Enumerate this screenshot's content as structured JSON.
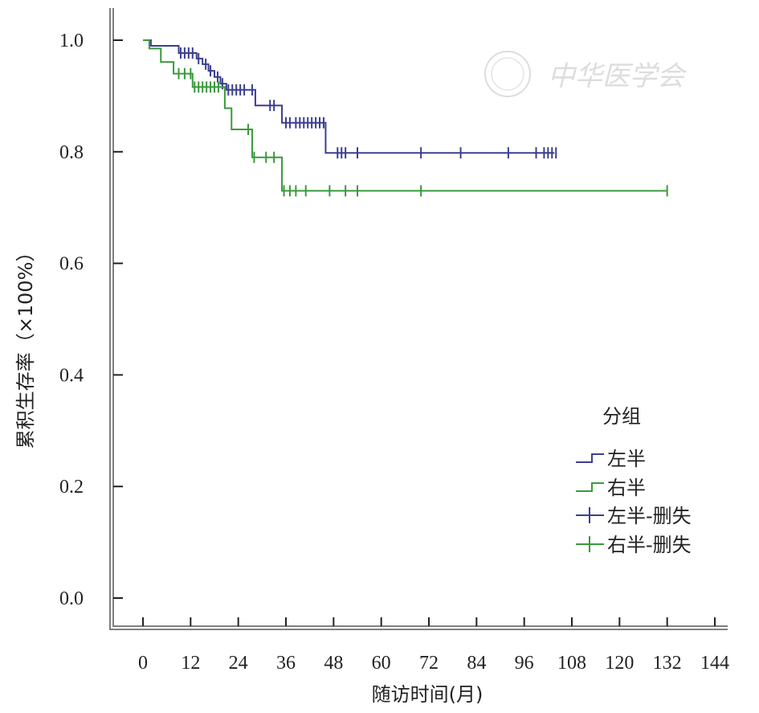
{
  "chart_data": {
    "type": "line",
    "subtype": "kaplan-meier",
    "title": "",
    "xlabel": "随访时间(月)",
    "ylabel": "累积生存率（×100%）",
    "xlim": [
      0,
      144
    ],
    "ylim": [
      0,
      1.0
    ],
    "xticks": [
      0,
      12,
      24,
      36,
      48,
      60,
      72,
      84,
      96,
      108,
      120,
      132,
      144
    ],
    "yticks": [
      0.0,
      0.2,
      0.4,
      0.6,
      0.8,
      1.0
    ],
    "ytick_labels": [
      "0.0",
      "0.2",
      "0.4",
      "0.6",
      "0.8",
      "1.0"
    ],
    "grid": false,
    "legend": {
      "title": "分组",
      "placement": "right",
      "entries": [
        "左半",
        "右半",
        "左半-删失",
        "右半-删失"
      ]
    },
    "watermark": "中华医学会",
    "series": [
      {
        "name": "左半",
        "censor_name": "左半-删失",
        "color": "#3b3f8f",
        "steps": [
          [
            0,
            1.0
          ],
          [
            2,
            0.99
          ],
          [
            9,
            0.977
          ],
          [
            13.5,
            0.967
          ],
          [
            15,
            0.957
          ],
          [
            16.5,
            0.945
          ],
          [
            18,
            0.934
          ],
          [
            19.5,
            0.922
          ],
          [
            21,
            0.911
          ],
          [
            28.3,
            0.883
          ],
          [
            35,
            0.852
          ],
          [
            46,
            0.798
          ]
        ],
        "end": 103.6,
        "censored": [
          9.5,
          10.5,
          11.5,
          12.5,
          14,
          15.8,
          17,
          18.8,
          20,
          21.5,
          22.5,
          23.5,
          24.5,
          25.5,
          27.5,
          32,
          33,
          36,
          37,
          38.5,
          39.5,
          40.5,
          41.5,
          42.5,
          43.5,
          44.5,
          45.5,
          49,
          50,
          51,
          54,
          70,
          80,
          92,
          99,
          101,
          102,
          103,
          104
        ]
      },
      {
        "name": "右半",
        "censor_name": "右半-删失",
        "color": "#3a9a3c",
        "steps": [
          [
            0,
            1.0
          ],
          [
            1.6,
            0.985
          ],
          [
            4.5,
            0.961
          ],
          [
            7.7,
            0.94
          ],
          [
            12.5,
            0.916
          ],
          [
            20.6,
            0.878
          ],
          [
            22.3,
            0.84
          ],
          [
            27.5,
            0.79
          ],
          [
            35,
            0.73
          ]
        ],
        "end": 132,
        "censored": [
          9,
          10.5,
          12,
          13,
          14,
          15,
          16,
          17,
          18,
          19,
          26.5,
          28,
          31,
          33,
          35.5,
          37,
          38.5,
          41,
          47,
          51,
          54,
          70,
          132
        ]
      }
    ]
  }
}
